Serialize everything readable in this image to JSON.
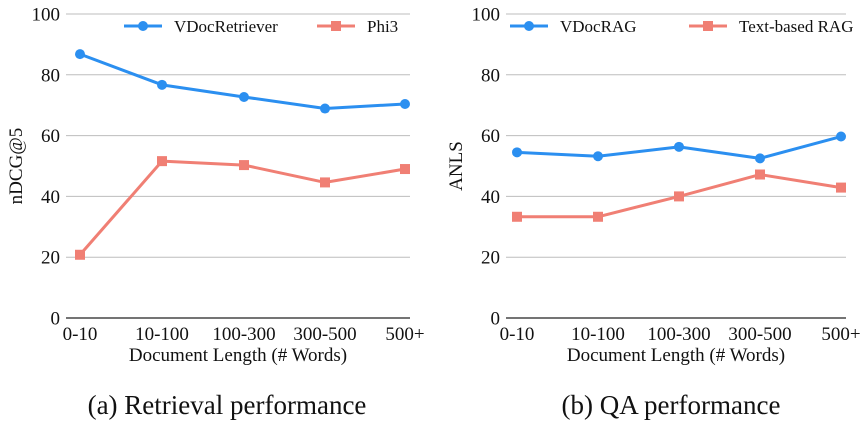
{
  "chart_data": [
    {
      "type": "line",
      "categories": [
        "0-10",
        "10-100",
        "100-300",
        "300-500",
        "500+"
      ],
      "series": [
        {
          "name": "VDocRetriever",
          "values": [
            86.8,
            76.7,
            72.7,
            68.9,
            70.4
          ],
          "color": "#2b8ff0",
          "marker": "circle"
        },
        {
          "name": "Phi3",
          "values": [
            20.8,
            51.6,
            50.3,
            44.6,
            49.0
          ],
          "color": "#f07f74",
          "marker": "square"
        }
      ],
      "title": "",
      "xlabel": "Document Length (# Words)",
      "ylabel": "nDCG@5",
      "ylim": [
        0,
        100
      ],
      "yticks": [
        0,
        20,
        40,
        60,
        80,
        100
      ],
      "grid": "y",
      "legend": "top",
      "caption": "(a)  Retrieval performance"
    },
    {
      "type": "line",
      "categories": [
        "0-10",
        "10-100",
        "100-300",
        "300-500",
        "500+"
      ],
      "series": [
        {
          "name": "VDocRAG",
          "values": [
            54.5,
            53.2,
            56.3,
            52.5,
            59.7
          ],
          "color": "#2b8ff0",
          "marker": "circle"
        },
        {
          "name": "Text-based RAG",
          "values": [
            33.3,
            33.3,
            40.0,
            47.2,
            42.9
          ],
          "color": "#f07f74",
          "marker": "square"
        }
      ],
      "title": "",
      "xlabel": "Document Length (# Words)",
      "ylabel": "ANLS",
      "ylim": [
        0,
        100
      ],
      "yticks": [
        0,
        20,
        40,
        60,
        80,
        100
      ],
      "grid": "y",
      "legend": "top",
      "caption": "(b)  QA performance"
    }
  ]
}
